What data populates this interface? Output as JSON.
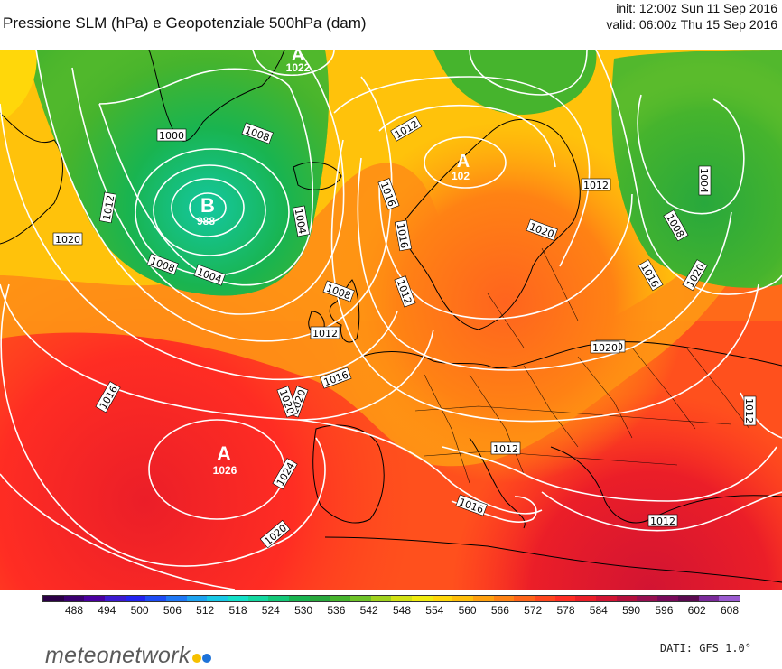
{
  "header": {
    "title": "Pressione SLM (hPa) e Geopotenziale 500hPa (dam)",
    "init": "init: 12:00z Sun 11 Sep 2016",
    "valid": "valid: 06:00z Thu 15 Sep 2016"
  },
  "map": {
    "pressure_centers": [
      {
        "type": "A",
        "value": "1022"
      },
      {
        "type": "B",
        "value": "988"
      },
      {
        "type": "A",
        "value": "102"
      },
      {
        "type": "A",
        "value": "1026"
      }
    ],
    "isobar_labels": [
      "1012",
      "1008",
      "1000",
      "1004",
      "1012",
      "1016",
      "1008",
      "1004",
      "1020",
      "1012",
      "1016",
      "1020",
      "1020",
      "1016",
      "1012",
      "1008",
      "1020",
      "1016",
      "1016",
      "1020",
      "1012",
      "1016",
      "1012",
      "1012",
      "1024",
      "1020",
      "1020",
      "1012",
      "1020",
      "1004",
      "1008"
    ]
  },
  "colorbar": {
    "colors": [
      "#2b0046",
      "#3a0070",
      "#4a00a0",
      "#3c1ad0",
      "#2323f0",
      "#1e4cf5",
      "#1f78f5",
      "#1ea3f0",
      "#19c8e6",
      "#14e0c8",
      "#14d8a0",
      "#14c878",
      "#19b450",
      "#28a83c",
      "#46b42d",
      "#6ec328",
      "#a0d21e",
      "#d2e114",
      "#f0eb0f",
      "#ffd70a",
      "#ffbe0a",
      "#ffa00f",
      "#ff8214",
      "#ff6419",
      "#ff461e",
      "#ff2d23",
      "#eb1e28",
      "#d21432",
      "#b40f3c",
      "#960f50",
      "#780a5a",
      "#5a0a50",
      "#7a2a9a",
      "#9a5ad0"
    ],
    "tick_labels": [
      "488",
      "494",
      "500",
      "506",
      "512",
      "518",
      "524",
      "530",
      "536",
      "542",
      "548",
      "554",
      "560",
      "566",
      "572",
      "578",
      "584",
      "590",
      "596",
      "602",
      "608"
    ]
  },
  "footer": {
    "logo_text": "meteonetwork",
    "logo_dot_colors": [
      "#f6c000",
      "#1e73d8"
    ],
    "source": "DATI: GFS 1.0°"
  }
}
